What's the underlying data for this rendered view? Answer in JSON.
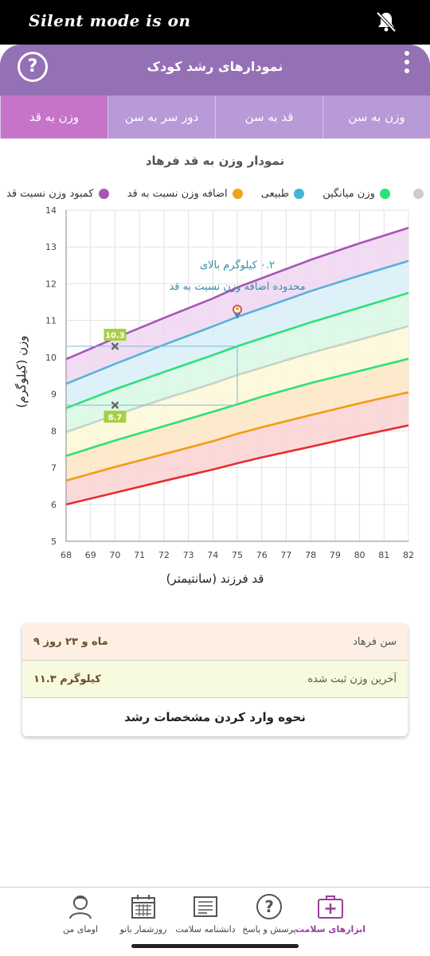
{
  "status_bar": {
    "text": "Silent mode is on",
    "icon": "bell-off-icon"
  },
  "header": {
    "title": "نمودارهای رشد کودک",
    "help_icon": "question-icon",
    "menu_icon": "kebab-menu-icon"
  },
  "tabs": [
    {
      "label": "وزن به سن",
      "active": false
    },
    {
      "label": "قد به سن",
      "active": false
    },
    {
      "label": "دور سر به سن",
      "active": false
    },
    {
      "label": "وزن به قد",
      "active": true
    }
  ],
  "chart_title": "نمودار وزن به قد فرهاد",
  "legend": [
    {
      "label": "کمبود وزن نسبت قد",
      "color": "#a855b5"
    },
    {
      "label": "اضافه وزن نسبت به قد",
      "color": "#f0a11e"
    },
    {
      "label": "طبیعی",
      "color": "#3fb6d6"
    },
    {
      "label": "وزن میانگین",
      "color": "#2ee07a"
    },
    {
      "label": "",
      "color": "#cccccc"
    }
  ],
  "chart_data": {
    "type": "line",
    "xlabel": "قد فرزند (سانتیمتر)",
    "ylabel": "وزن (کیلوگرم)",
    "xlim": [
      68,
      82
    ],
    "ylim": [
      5,
      14
    ],
    "x_ticks": [
      68,
      69,
      70,
      71,
      72,
      73,
      74,
      75,
      76,
      77,
      78,
      79,
      80,
      81,
      82
    ],
    "y_ticks": [
      5,
      6,
      7,
      8,
      9,
      10,
      11,
      12,
      13,
      14
    ],
    "grid": true,
    "curves": [
      {
        "color": "#e52f2f",
        "fill": "#fcd2d2",
        "points": [
          [
            68,
            6.0
          ],
          [
            70,
            6.32
          ],
          [
            72,
            6.64
          ],
          [
            74,
            6.95
          ],
          [
            75,
            7.12
          ],
          [
            76,
            7.28
          ],
          [
            78,
            7.57
          ],
          [
            80,
            7.87
          ],
          [
            82,
            8.15
          ]
        ]
      },
      {
        "color": "#f29b16",
        "fill": "#fde5c2",
        "points": [
          [
            68,
            6.65
          ],
          [
            70,
            7.02
          ],
          [
            72,
            7.37
          ],
          [
            74,
            7.72
          ],
          [
            75,
            7.92
          ],
          [
            76,
            8.1
          ],
          [
            78,
            8.43
          ],
          [
            80,
            8.75
          ],
          [
            82,
            9.05
          ]
        ]
      },
      {
        "color": "#2ee07a",
        "fill": "#fdf8d6",
        "points": [
          [
            68,
            7.32
          ],
          [
            70,
            7.74
          ],
          [
            72,
            8.13
          ],
          [
            74,
            8.52
          ],
          [
            75,
            8.72
          ],
          [
            76,
            8.93
          ],
          [
            78,
            9.3
          ],
          [
            80,
            9.63
          ],
          [
            82,
            9.96
          ]
        ]
      },
      {
        "color": "#c5d4c8",
        "fill": "#d8f8e4",
        "points": [
          [
            68,
            7.97
          ],
          [
            70,
            8.43
          ],
          [
            72,
            8.87
          ],
          [
            74,
            9.29
          ],
          [
            75,
            9.52
          ],
          [
            76,
            9.72
          ],
          [
            78,
            10.12
          ],
          [
            80,
            10.48
          ],
          [
            82,
            10.85
          ]
        ]
      },
      {
        "color": "#2ee07a",
        "fill": "#d8f8e4",
        "points": [
          [
            68,
            8.62
          ],
          [
            70,
            9.13
          ],
          [
            72,
            9.6
          ],
          [
            74,
            10.06
          ],
          [
            75,
            10.3
          ],
          [
            76,
            10.52
          ],
          [
            78,
            10.95
          ],
          [
            80,
            11.35
          ],
          [
            82,
            11.75
          ]
        ]
      },
      {
        "color": "#56b2d8",
        "fill": "#d9eef7",
        "points": [
          [
            68,
            9.28
          ],
          [
            70,
            9.82
          ],
          [
            72,
            10.34
          ],
          [
            74,
            10.84
          ],
          [
            75,
            11.1
          ],
          [
            76,
            11.33
          ],
          [
            78,
            11.8
          ],
          [
            80,
            12.22
          ],
          [
            82,
            12.62
          ]
        ]
      },
      {
        "color": "#a855b5",
        "fill": "#eed6f2",
        "points": [
          [
            68,
            9.95
          ],
          [
            70,
            10.52
          ],
          [
            72,
            11.07
          ],
          [
            74,
            11.6
          ],
          [
            75,
            11.9
          ],
          [
            76,
            12.15
          ],
          [
            78,
            12.65
          ],
          [
            80,
            13.1
          ],
          [
            82,
            13.52
          ]
        ]
      }
    ],
    "markers": [
      {
        "x": 70,
        "y": 10.3,
        "label": "10.3"
      },
      {
        "x": 70,
        "y": 8.7,
        "label": "8.7"
      }
    ],
    "reference_lines": {
      "x": 75,
      "y_top": 10.3,
      "y_bottom": 8.7
    },
    "point": {
      "x": 75,
      "y": 11.3
    },
    "annotation": [
      "۰.۲ کیلوگرم بالای",
      "محدوده اضافه وزن نسبت به قد"
    ]
  },
  "info_card": {
    "age_label": "سن فرهاد",
    "age_value": "۹ ماه و ۲۳ روز",
    "weight_label": "آخرین وزن ثبت شده",
    "weight_value": "۱۱.۳ کیلوگرم",
    "help_link": "نحوه وارد کردن مشخصات رشد"
  },
  "bottom_nav": [
    {
      "label": "ابزارهای سلامت",
      "icon": "health-kit-icon",
      "active": true
    },
    {
      "label": "پرسش و پاسخ",
      "icon": "question-bubble-icon",
      "active": false
    },
    {
      "label": "دانشنامه سلامت",
      "icon": "encyclopedia-icon",
      "active": false
    },
    {
      "label": "روزشمار بانو",
      "icon": "calendar-icon",
      "active": false
    },
    {
      "label": "اومای من",
      "icon": "profile-icon",
      "active": false
    }
  ]
}
